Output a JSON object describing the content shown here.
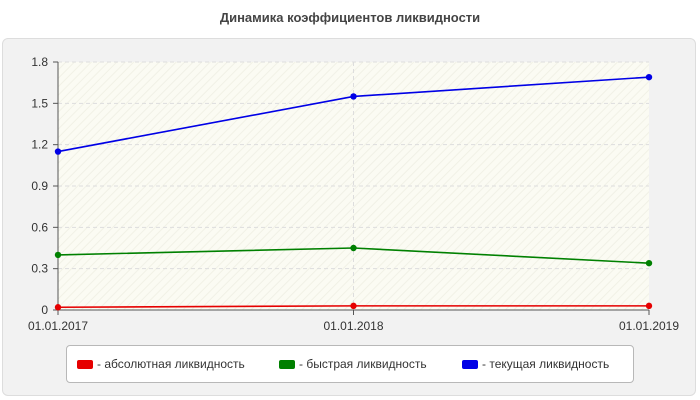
{
  "chart_data": {
    "type": "line",
    "title": "Динамика коэффициентов ликвидности",
    "xlabel": "",
    "ylabel": "",
    "categories": [
      "01.01.2017",
      "01.01.2018",
      "01.01.2019"
    ],
    "ylim": [
      0,
      1.8
    ],
    "yticks": [
      "0",
      "0.3",
      "0.6",
      "0.9",
      "1.2",
      "1.5",
      "1.8"
    ],
    "grid": true,
    "legend_position": "bottom",
    "series": [
      {
        "name": "- абсолютная ликвидность",
        "color": "#e60000",
        "values": [
          0.02,
          0.03,
          0.03
        ]
      },
      {
        "name": "- быстрая ликвидность",
        "color": "#008000",
        "values": [
          0.4,
          0.45,
          0.34
        ]
      },
      {
        "name": "- текущая ликвидность",
        "color": "#0000e6",
        "values": [
          1.15,
          1.55,
          1.69
        ]
      }
    ]
  }
}
